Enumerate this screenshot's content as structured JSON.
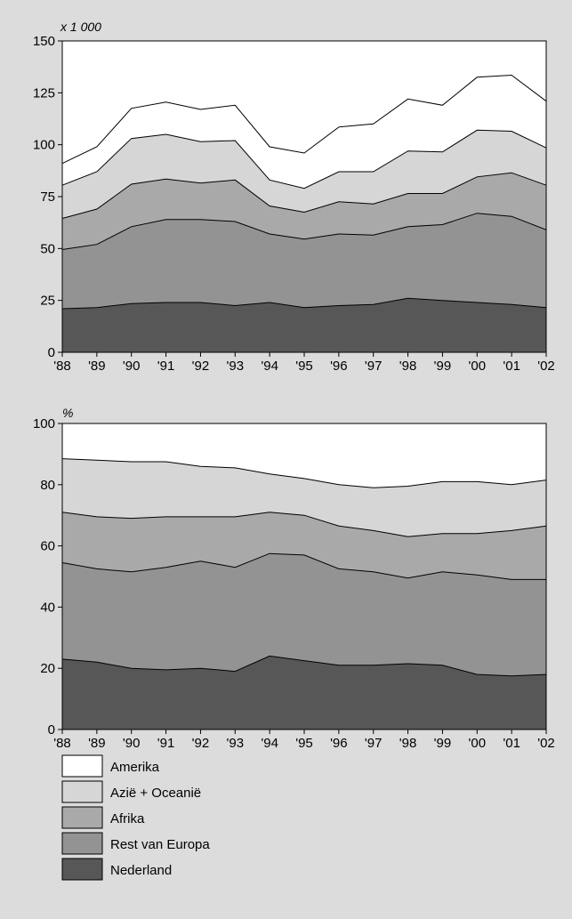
{
  "legend": {
    "entries": [
      "Amerika",
      "Azië + Oceanië",
      "Afrika",
      "Rest van Europa",
      "Nederland"
    ],
    "colors": [
      "#ffffff",
      "#d6d6d6",
      "#a9a9a9",
      "#939393",
      "#575757"
    ]
  },
  "chart_data": [
    {
      "type": "area",
      "stacked": true,
      "unit_label": "x 1 000",
      "categories": [
        "'88",
        "'89",
        "'90",
        "'91",
        "'92",
        "'93",
        "'94",
        "'95",
        "'96",
        "'97",
        "'98",
        "'99",
        "'00",
        "'01",
        "'02"
      ],
      "ylim": [
        0,
        150
      ],
      "yticks": [
        0,
        25,
        50,
        75,
        100,
        125,
        150
      ],
      "grid": false,
      "series": [
        {
          "name": "Nederland",
          "color": "#575757",
          "values": [
            21,
            21.5,
            23.5,
            24,
            24,
            22.5,
            24,
            21.5,
            22.5,
            23,
            26,
            25,
            24,
            23,
            21.5
          ]
        },
        {
          "name": "Rest van Europa",
          "color": "#939393",
          "values": [
            28.5,
            30.5,
            37,
            40,
            40,
            40.5,
            33,
            33,
            34.5,
            33.5,
            34.5,
            36.5,
            43,
            42.5,
            37.5
          ]
        },
        {
          "name": "Afrika",
          "color": "#a9a9a9",
          "values": [
            15,
            17,
            20.5,
            19.5,
            17.5,
            20,
            13.5,
            13,
            15.5,
            15,
            16,
            15,
            17.5,
            21,
            21.5
          ]
        },
        {
          "name": "Azië + Oceanië",
          "color": "#d6d6d6",
          "values": [
            16,
            18,
            22,
            21.5,
            20,
            19,
            12.5,
            11.5,
            14.5,
            15.5,
            20.5,
            20,
            22.5,
            20,
            18
          ]
        },
        {
          "name": "Amerika",
          "color": "#ffffff",
          "values": [
            10.5,
            12,
            14.5,
            15.5,
            15.5,
            17,
            16,
            17,
            21.5,
            23,
            25,
            22.5,
            25.5,
            27,
            22.5
          ]
        }
      ]
    },
    {
      "type": "area",
      "stacked": true,
      "unit_label": "%",
      "categories": [
        "'88",
        "'89",
        "'90",
        "'91",
        "'92",
        "'93",
        "'94",
        "'95",
        "'96",
        "'97",
        "'98",
        "'99",
        "'00",
        "'01",
        "'02"
      ],
      "ylim": [
        0,
        100
      ],
      "yticks": [
        0,
        20,
        40,
        60,
        80,
        100
      ],
      "grid": false,
      "series": [
        {
          "name": "Nederland",
          "color": "#575757",
          "values": [
            23,
            22,
            20,
            19.5,
            20,
            19,
            24,
            22.5,
            21,
            21,
            21.5,
            21,
            18,
            17.5,
            18
          ]
        },
        {
          "name": "Rest van Europa",
          "color": "#939393",
          "values": [
            31.5,
            30.5,
            31.5,
            33.5,
            35,
            34,
            33.5,
            34.5,
            31.5,
            30.5,
            28,
            30.5,
            32.5,
            31.5,
            31
          ]
        },
        {
          "name": "Afrika",
          "color": "#a9a9a9",
          "values": [
            16.5,
            17,
            17.5,
            16.5,
            14.5,
            16.5,
            13.5,
            13,
            14,
            13.5,
            13.5,
            12.5,
            13.5,
            16,
            17.5
          ]
        },
        {
          "name": "Azië + Oceanië",
          "color": "#d6d6d6",
          "values": [
            17.5,
            18.5,
            18.5,
            18,
            16.5,
            16,
            12.5,
            12,
            13.5,
            14,
            16.5,
            17,
            17,
            15,
            15
          ]
        },
        {
          "name": "Amerika",
          "color": "#ffffff",
          "values": [
            11.5,
            12,
            12.5,
            12.5,
            14,
            14.5,
            16.5,
            18,
            20,
            21,
            20.5,
            19,
            19,
            20,
            18.5
          ]
        }
      ]
    }
  ]
}
